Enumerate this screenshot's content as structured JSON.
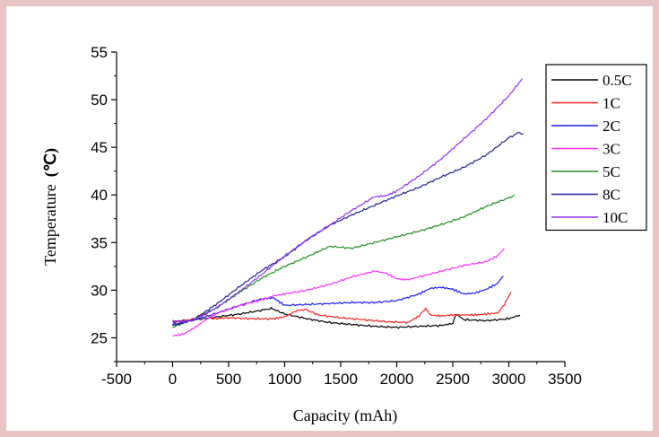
{
  "chart_data": {
    "type": "line",
    "title": "",
    "xlabel": "Capacity (mAh)",
    "ylabel": "Temperature (℃)",
    "ylabel_main": "Temperature",
    "ylabel_unit": "(℃)",
    "xlim": [
      -500,
      3500
    ],
    "ylim": [
      22.5,
      55
    ],
    "xticks": [
      -500,
      0,
      500,
      1000,
      1500,
      2000,
      2500,
      3000,
      3500
    ],
    "yticks": [
      25,
      30,
      35,
      40,
      45,
      50,
      55
    ],
    "legend_position": "top-right",
    "series": [
      {
        "name": "0.5C",
        "color": "#000000",
        "x": [
          0,
          200,
          400,
          600,
          800,
          880,
          1000,
          1200,
          1400,
          1600,
          1800,
          2000,
          2200,
          2400,
          2500,
          2530,
          2600,
          2800,
          3000,
          3100
        ],
        "y": [
          26.7,
          26.9,
          27.2,
          27.5,
          27.9,
          28.1,
          27.5,
          27.0,
          26.6,
          26.4,
          26.2,
          26.1,
          26.2,
          26.3,
          26.5,
          27.5,
          26.9,
          26.8,
          27.0,
          27.4
        ]
      },
      {
        "name": "1C",
        "color": "#ff2020",
        "x": [
          0,
          200,
          280,
          350,
          500,
          700,
          900,
          1000,
          1100,
          1180,
          1300,
          1500,
          1700,
          1900,
          2100,
          2200,
          2260,
          2300,
          2400,
          2500,
          2600,
          2700,
          2800,
          2900,
          2960,
          3020
        ],
        "y": [
          26.6,
          27.0,
          27.6,
          27.0,
          27.1,
          27.0,
          27.0,
          27.2,
          27.8,
          28.0,
          27.4,
          27.1,
          26.9,
          26.7,
          26.6,
          27.3,
          28.1,
          27.4,
          27.3,
          27.4,
          27.4,
          27.4,
          27.5,
          27.6,
          28.5,
          29.8
        ]
      },
      {
        "name": "2C",
        "color": "#1a1aff",
        "x": [
          0,
          200,
          400,
          600,
          800,
          900,
          1000,
          1200,
          1400,
          1600,
          1800,
          2000,
          2200,
          2300,
          2400,
          2500,
          2600,
          2700,
          2800,
          2900,
          2950
        ],
        "y": [
          26.4,
          26.9,
          27.6,
          28.4,
          29.1,
          29.2,
          28.4,
          28.5,
          28.6,
          28.7,
          28.7,
          28.9,
          29.6,
          30.2,
          30.3,
          30.1,
          29.6,
          29.7,
          30.1,
          30.7,
          31.5
        ]
      },
      {
        "name": "3C",
        "color": "#ff30ff",
        "x": [
          0,
          100,
          200,
          300,
          400,
          600,
          800,
          900,
          1000,
          1200,
          1400,
          1600,
          1800,
          1900,
          2000,
          2100,
          2200,
          2400,
          2600,
          2800,
          2900,
          2960
        ],
        "y": [
          25.2,
          25.4,
          26.1,
          26.9,
          27.6,
          28.4,
          29.0,
          29.4,
          29.6,
          30.0,
          30.6,
          31.4,
          32.0,
          31.8,
          31.2,
          31.1,
          31.4,
          32.0,
          32.6,
          33.0,
          33.6,
          34.4
        ]
      },
      {
        "name": "5C",
        "color": "#209020",
        "x": [
          0,
          200,
          400,
          600,
          800,
          1000,
          1200,
          1400,
          1600,
          1800,
          2000,
          2200,
          2400,
          2600,
          2800,
          3000,
          3050
        ],
        "y": [
          26.1,
          27.0,
          28.2,
          29.8,
          31.3,
          32.5,
          33.5,
          34.6,
          34.4,
          35.0,
          35.6,
          36.2,
          36.9,
          37.7,
          38.8,
          39.7,
          40.0
        ]
      },
      {
        "name": "8C",
        "color": "#202090",
        "x": [
          0,
          100,
          200,
          400,
          600,
          800,
          1000,
          1200,
          1400,
          1600,
          1800,
          2000,
          2200,
          2400,
          2600,
          2800,
          3000,
          3080,
          3130
        ],
        "y": [
          26.3,
          26.6,
          27.0,
          28.6,
          30.4,
          32.1,
          33.5,
          35.3,
          36.8,
          37.9,
          38.9,
          39.9,
          40.8,
          41.9,
          42.9,
          44.2,
          46.0,
          46.5,
          46.4
        ]
      },
      {
        "name": "10C",
        "color": "#9030ff",
        "x": [
          0,
          100,
          200,
          400,
          600,
          800,
          1000,
          1200,
          1400,
          1600,
          1800,
          1900,
          2000,
          2200,
          2400,
          2600,
          2800,
          3000,
          3120
        ],
        "y": [
          26.8,
          26.7,
          26.9,
          28.2,
          29.9,
          31.7,
          33.6,
          35.3,
          36.8,
          38.4,
          39.8,
          39.9,
          40.4,
          42.0,
          43.8,
          45.9,
          48.0,
          50.4,
          52.2
        ]
      }
    ]
  }
}
